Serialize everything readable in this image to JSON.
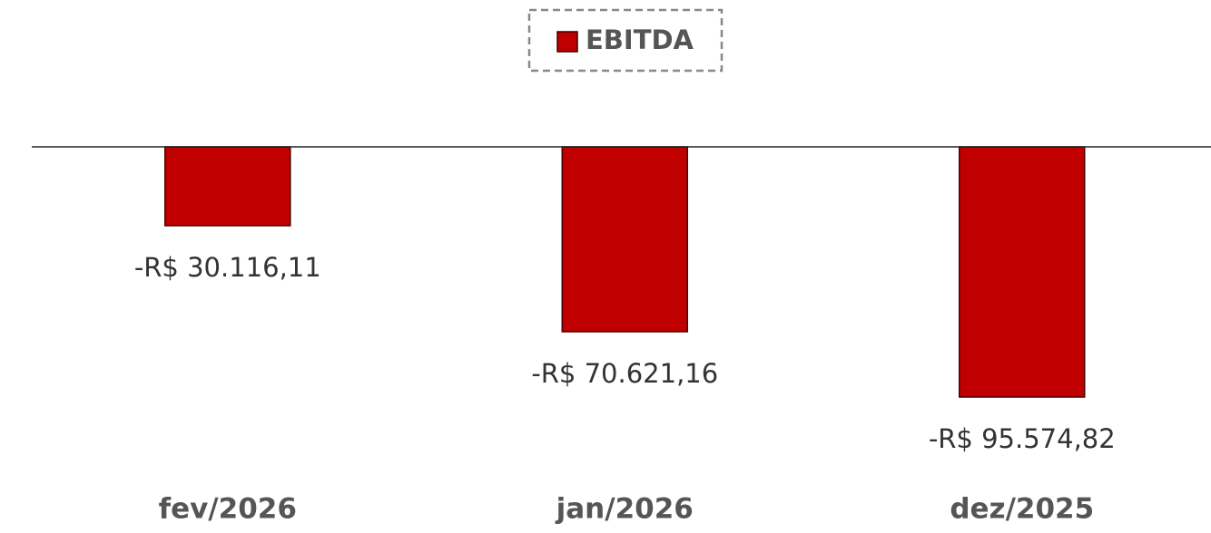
{
  "chart_data": {
    "type": "bar",
    "categories": [
      "fev/2026",
      "jan/2026",
      "dez/2025"
    ],
    "series": [
      {
        "name": "EBITDA",
        "color": "#c00000",
        "values": [
          -30116.11,
          -70621.16,
          -95574.82
        ],
        "value_labels": [
          "-R$ 30.116,11",
          "-R$ 70.621,16",
          "-R$ 95.574,82"
        ]
      }
    ],
    "legend": "top"
  }
}
